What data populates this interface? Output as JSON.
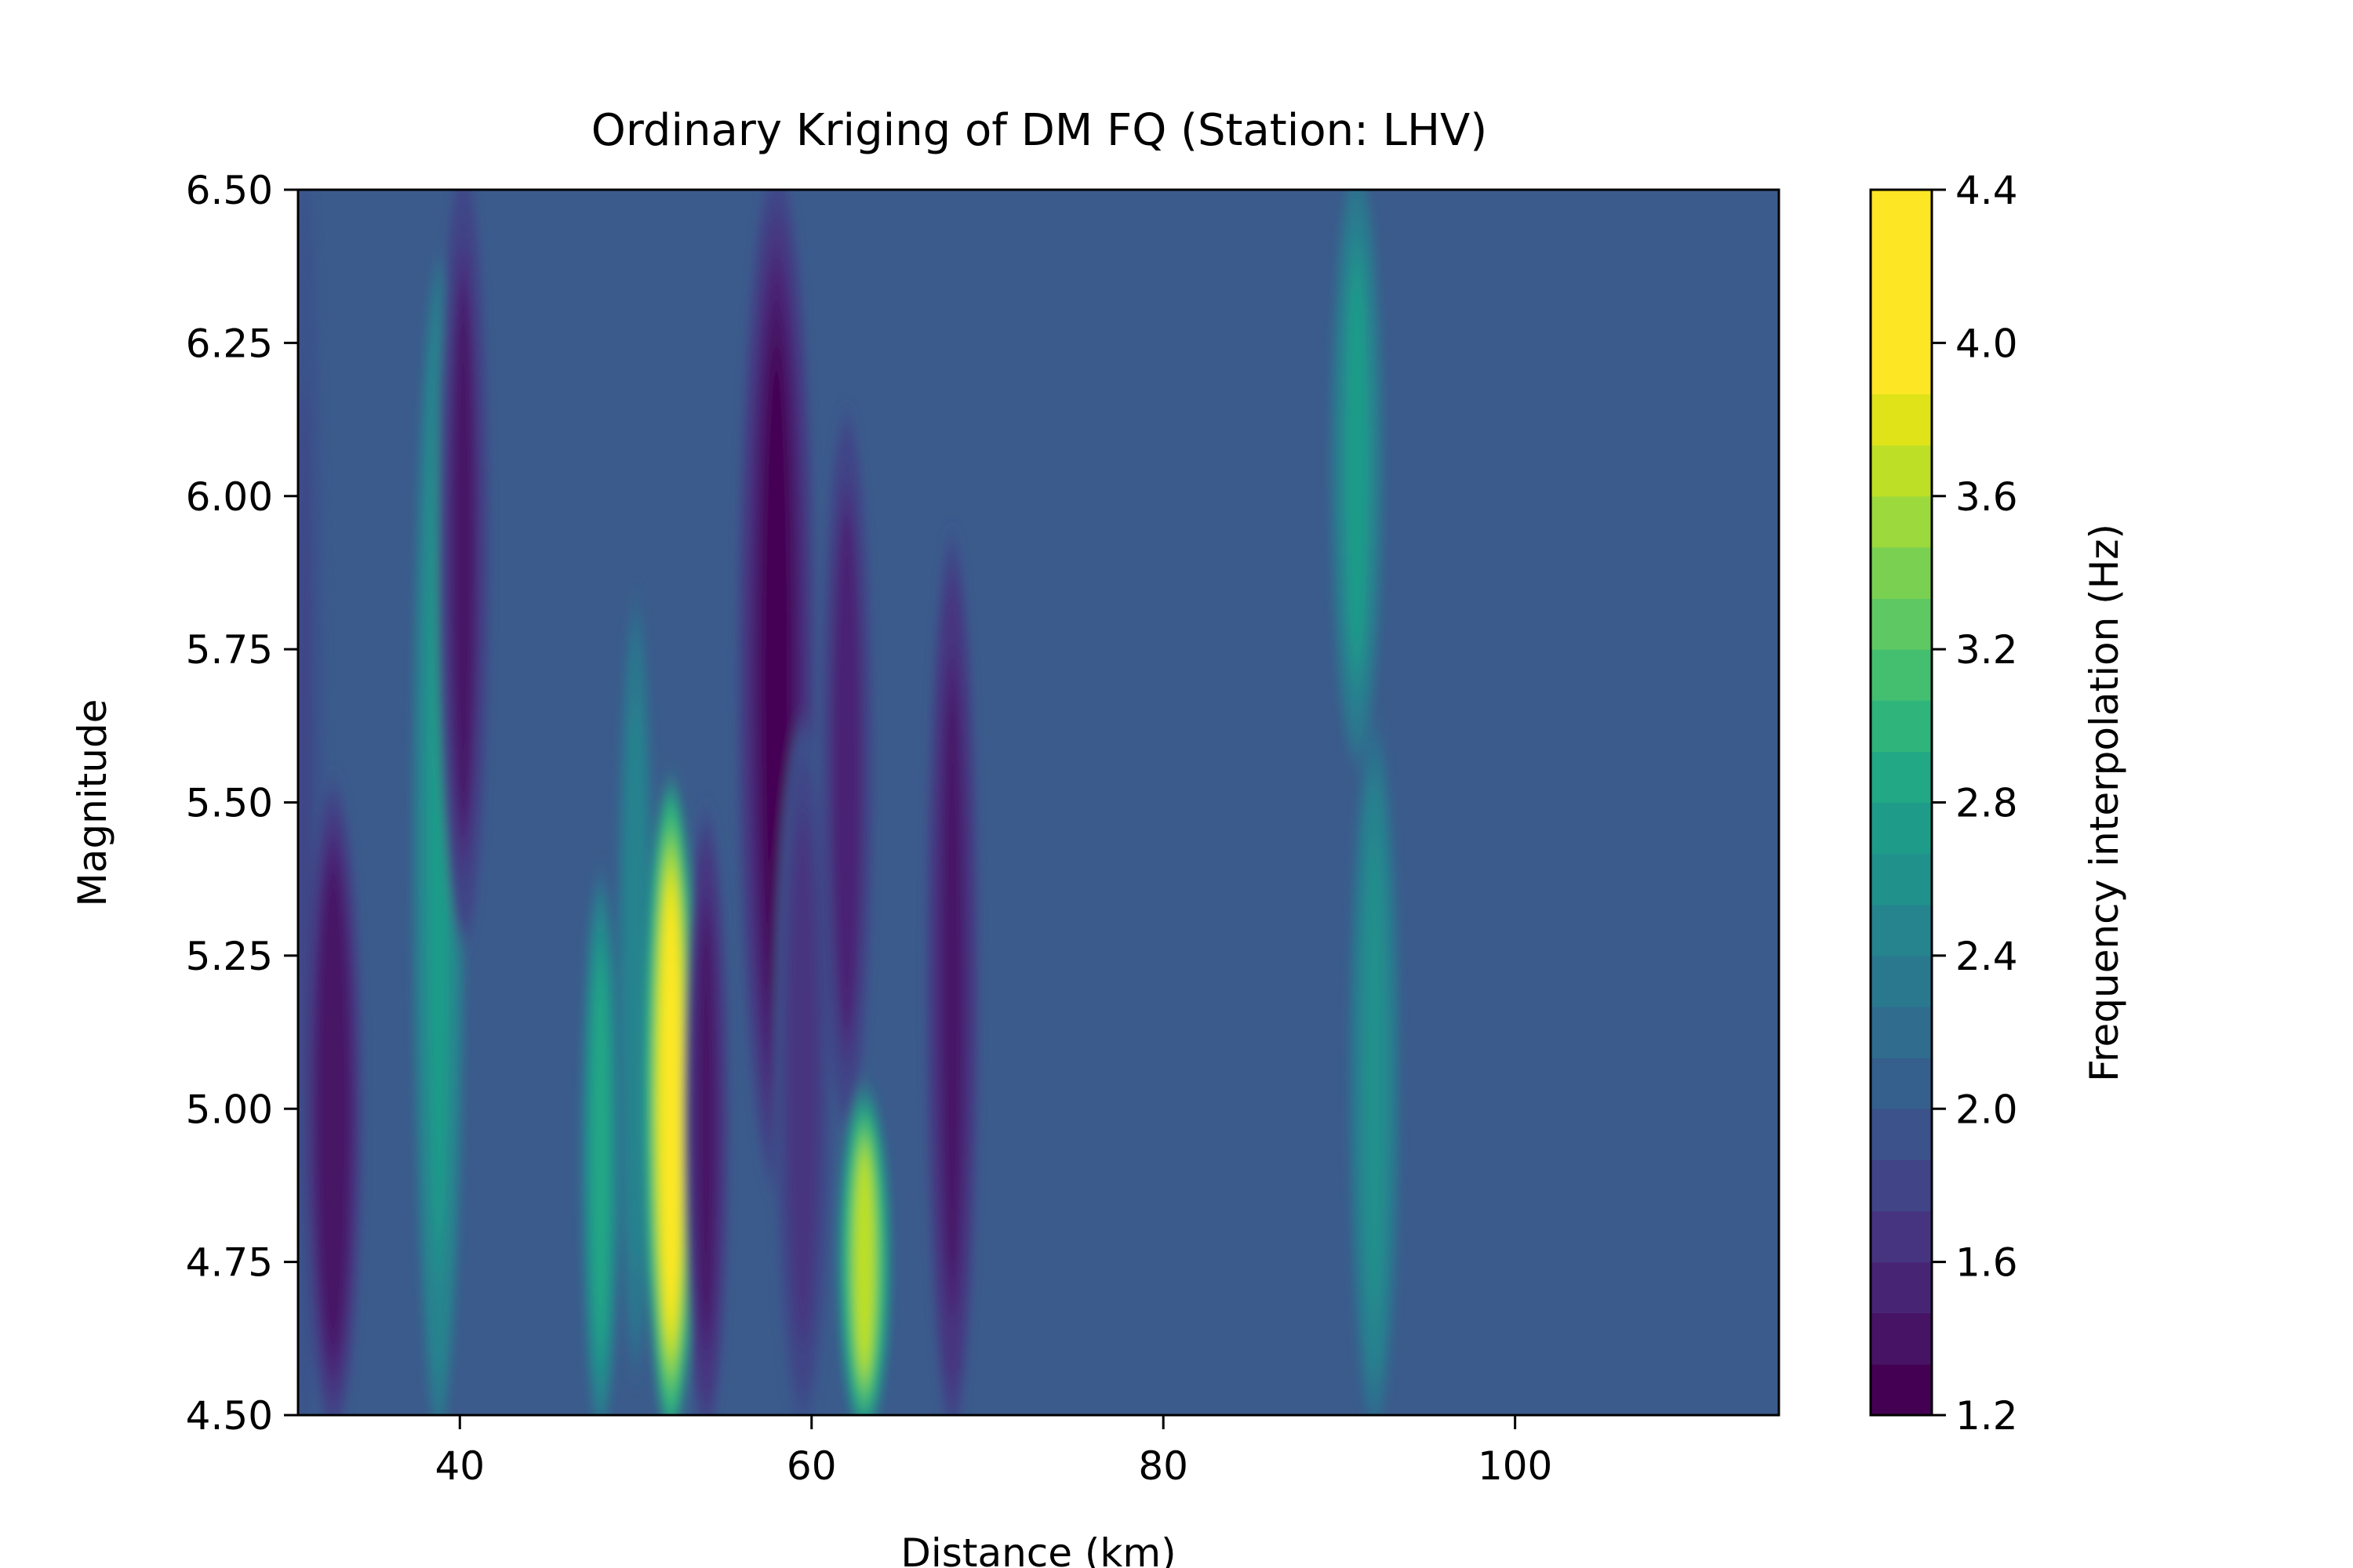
{
  "chart_data": {
    "type": "heatmap",
    "subtype": "filled-contour",
    "title": "Ordinary Kriging of DM FQ (Station: LHV)",
    "xlabel": "Distance (km)",
    "ylabel": "Magnitude",
    "xlim": [
      30.8,
      115
    ],
    "ylim": [
      4.5,
      6.5
    ],
    "xticks": [
      40,
      60,
      80,
      100
    ],
    "xtick_labels": [
      "40",
      "60",
      "80",
      "100"
    ],
    "yticks": [
      4.5,
      4.75,
      5.0,
      5.25,
      5.5,
      5.75,
      6.0,
      6.25,
      6.5
    ],
    "ytick_labels": [
      "4.50",
      "4.75",
      "5.00",
      "5.25",
      "5.50",
      "5.75",
      "6.00",
      "6.25",
      "6.50"
    ],
    "background_value": 2.05,
    "colorbar": {
      "label": "Frequency interpolation (Hz)",
      "range": [
        1.2,
        4.4
      ],
      "ticks": [
        1.2,
        1.6,
        2.0,
        2.4,
        2.8,
        3.2,
        3.6,
        4.0,
        4.4
      ],
      "tick_labels": [
        "1.2",
        "1.6",
        "2.0",
        "2.4",
        "2.8",
        "3.2",
        "3.6",
        "4.0",
        "4.4"
      ],
      "levels": [
        1.2,
        1.333,
        1.467,
        1.6,
        1.733,
        1.867,
        2.0,
        2.133,
        2.267,
        2.4,
        2.533,
        2.667,
        2.8,
        2.933,
        3.067,
        3.2,
        3.333,
        3.467,
        3.6,
        3.733,
        3.867,
        4.0,
        4.133,
        4.267,
        4.4
      ],
      "colors": [
        "#440154",
        "#471365",
        "#482475",
        "#463480",
        "#414487",
        "#3b528b",
        "#355f8d",
        "#2f6c8e",
        "#2a788e",
        "#25848e",
        "#21918c",
        "#1e9c89",
        "#22a884",
        "#2fb47c",
        "#44bf70",
        "#5ec962",
        "#7ad151",
        "#9bd93c",
        "#bddf26",
        "#dfe318",
        "#fde725",
        "#fde725",
        "#fde725",
        "#fde725"
      ]
    },
    "features": [
      {
        "x": 31.2,
        "mag_low": 4.5,
        "mag_high": 6.5,
        "peak": 1.85,
        "width_km": 0.6
      },
      {
        "x": 32.8,
        "mag_low": 4.5,
        "mag_high": 5.5,
        "peak": 1.35,
        "width_km": 0.9
      },
      {
        "x": 38.8,
        "mag_low": 4.5,
        "mag_high": 6.35,
        "peak": 2.75,
        "width_km": 0.8
      },
      {
        "x": 40.2,
        "mag_low": 5.3,
        "mag_high": 6.5,
        "peak": 1.45,
        "width_km": 0.8
      },
      {
        "x": 48.0,
        "mag_low": 4.5,
        "mag_high": 5.35,
        "peak": 2.8,
        "width_km": 0.6
      },
      {
        "x": 50.0,
        "mag_low": 4.6,
        "mag_high": 5.8,
        "peak": 2.5,
        "width_km": 0.6
      },
      {
        "x": 52.0,
        "mag_low": 4.5,
        "mag_high": 5.5,
        "peak": 4.2,
        "width_km": 0.8
      },
      {
        "x": 54.0,
        "mag_low": 4.5,
        "mag_high": 5.45,
        "peak": 1.4,
        "width_km": 0.7
      },
      {
        "x": 58.0,
        "mag_low": 4.9,
        "mag_high": 6.5,
        "peak": 1.3,
        "width_km": 1.2
      },
      {
        "x": 59.5,
        "mag_low": 4.5,
        "mag_high": 5.6,
        "peak": 1.6,
        "width_km": 0.9
      },
      {
        "x": 62.0,
        "mag_low": 5.0,
        "mag_high": 6.1,
        "peak": 1.5,
        "width_km": 0.8
      },
      {
        "x": 63.0,
        "mag_low": 4.5,
        "mag_high": 5.0,
        "peak": 3.6,
        "width_km": 0.8
      },
      {
        "x": 68.0,
        "mag_low": 4.5,
        "mag_high": 5.9,
        "peak": 1.4,
        "width_km": 0.8
      },
      {
        "x": 91.0,
        "mag_low": 5.6,
        "mag_high": 6.5,
        "peak": 2.7,
        "width_km": 0.8
      },
      {
        "x": 92.0,
        "mag_low": 4.5,
        "mag_high": 5.6,
        "peak": 2.6,
        "width_km": 0.8
      }
    ]
  }
}
